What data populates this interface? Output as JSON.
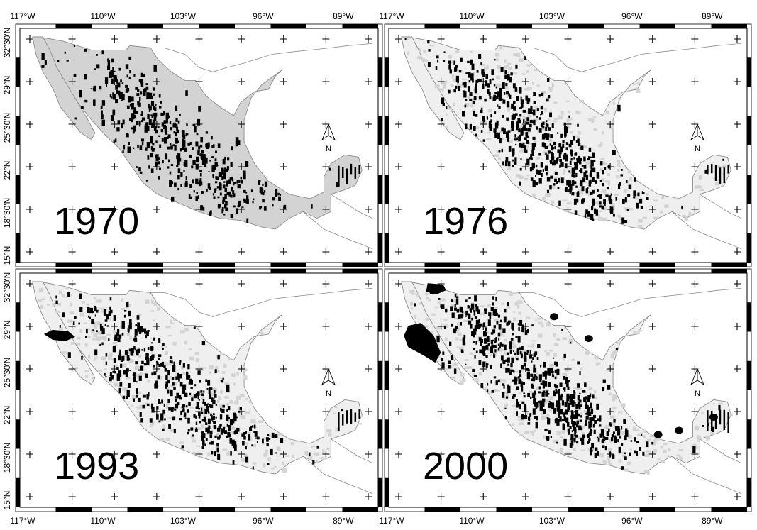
{
  "figure": {
    "lon_labels": [
      "117°W",
      "110°W",
      "103°W",
      "96°W",
      "89°W"
    ],
    "lat_labels": [
      "32°30'N",
      "29°N",
      "25°30'N",
      "22°N",
      "18°30'N",
      "15°N"
    ],
    "north_label": "N",
    "colors": {
      "land_fill": "#d3d3d3",
      "land_pale": "#efefef",
      "outline": "#8c8c8c",
      "dots": "#000000",
      "frame": "#000000",
      "background": "#ffffff"
    },
    "panels": [
      {
        "year": "1970",
        "land_style": "gray",
        "dot_density": 0.9,
        "features": []
      },
      {
        "year": "1976",
        "land_style": "pale",
        "dot_density": 1.0,
        "features": []
      },
      {
        "year": "1993",
        "land_style": "pale",
        "dot_density": 0.85,
        "features": [
          "sonora-patch"
        ]
      },
      {
        "year": "2000",
        "land_style": "pale",
        "dot_density": 1.15,
        "features": [
          "sonora-patch-large",
          "gulf-coast-patches"
        ]
      }
    ]
  }
}
